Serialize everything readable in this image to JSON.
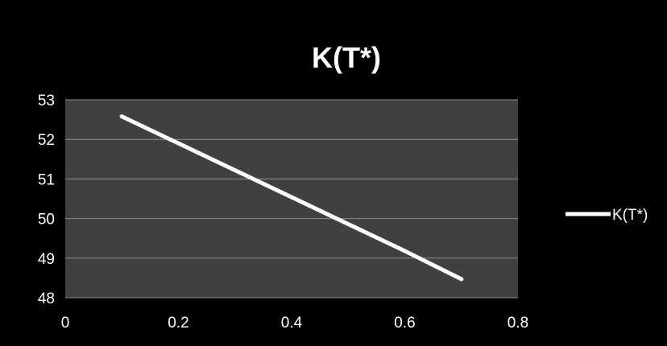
{
  "chart_data": {
    "type": "line",
    "title": "K(T*)",
    "xlabel": "",
    "ylabel": "",
    "xlim": [
      0,
      0.8
    ],
    "ylim": [
      48,
      53
    ],
    "x_ticks": [
      "0",
      "0.2",
      "0.4",
      "0.6",
      "0.8"
    ],
    "y_ticks": [
      "48",
      "49",
      "50",
      "51",
      "52",
      "53"
    ],
    "grid": "horizontal",
    "legend_position": "right",
    "series": [
      {
        "name": "K(T*)",
        "x": [
          0.1,
          0.2,
          0.3,
          0.4,
          0.5,
          0.6,
          0.7
        ],
        "y": [
          52.58,
          51.9,
          51.22,
          50.54,
          49.86,
          49.18,
          48.47
        ],
        "color": "#ffffff"
      }
    ],
    "colors": {
      "background": "#000000",
      "plot_area": "#404040",
      "gridline": "#8c8c8c",
      "text": "#ffffff"
    }
  }
}
